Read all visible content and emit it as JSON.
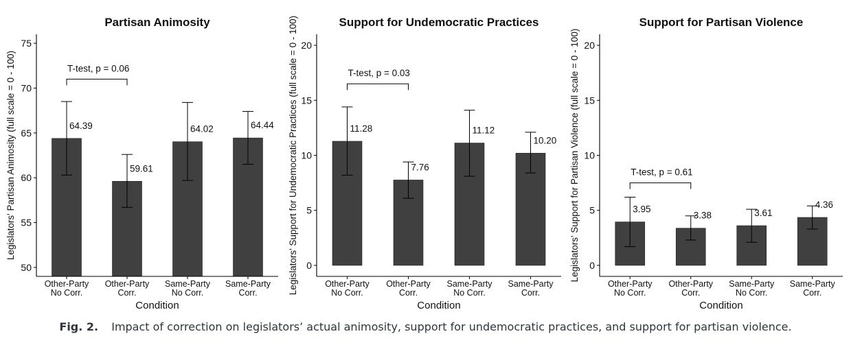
{
  "figure": {
    "label": "Fig. 2.",
    "caption": "Impact of correction on legislators’ actual animosity, support for undemocratic practices, and support for partisan violence."
  },
  "colors": {
    "bar": "#404040",
    "axis": "#000000"
  },
  "chart_data": [
    {
      "type": "bar",
      "title": "Partisan Animosity",
      "xlabel": "Condition",
      "ylabel": "Legislators' Partisan Animosity (full scale = 0 - 100)",
      "categories": [
        "Other-Party\nNo Corr.",
        "Other-Party\nCorr.",
        "Same-Party\nNo Corr.",
        "Same-Party\nCorr."
      ],
      "values": [
        64.39,
        59.61,
        64.02,
        64.44
      ],
      "value_labels": [
        "64.39",
        "59.61",
        "64.02",
        "64.44"
      ],
      "error_low": [
        60.3,
        56.7,
        59.7,
        61.5
      ],
      "error_high": [
        68.5,
        62.6,
        68.4,
        67.4
      ],
      "ylim": [
        49,
        76
      ],
      "bar_base": 49,
      "yticks": [
        50,
        55,
        60,
        65,
        70,
        75
      ],
      "annotation": {
        "text": "T-test, p = 0.06",
        "from": 0,
        "to": 1,
        "y": 71
      },
      "grid": false
    },
    {
      "type": "bar",
      "title": "Support for Undemocratic Practices",
      "xlabel": "Condition",
      "ylabel": "Legislators' Support for Undemocratic Practices (full scale = 0 - 100)",
      "categories": [
        "Other-Party\nNo Corr.",
        "Other-Party\nCorr.",
        "Same-Party\nNo Corr.",
        "Same-Party\nCorr."
      ],
      "values": [
        11.28,
        7.76,
        11.12,
        10.2
      ],
      "value_labels": [
        "11.28",
        "7.76",
        "11.12",
        "10.20"
      ],
      "error_low": [
        8.2,
        6.1,
        8.1,
        8.4
      ],
      "error_high": [
        14.4,
        9.4,
        14.1,
        12.1
      ],
      "ylim": [
        -1,
        21
      ],
      "bar_base": 0,
      "yticks": [
        0,
        5,
        10,
        15,
        20
      ],
      "annotation": {
        "text": "T-test, p = 0.03",
        "from": 0,
        "to": 1,
        "y": 16.5
      },
      "grid": false
    },
    {
      "type": "bar",
      "title": "Support for Partisan Violence",
      "xlabel": "Condition",
      "ylabel": "Legislators' Support for Partisan Violence (full scale = 0 - 100)",
      "categories": [
        "Other-Party\nNo Corr.",
        "Other-Party\nCorr.",
        "Same-Party\nNo Corr.",
        "Same-Party\nCorr."
      ],
      "values": [
        3.95,
        3.38,
        3.61,
        4.36
      ],
      "value_labels": [
        "3.95",
        "3.38",
        "3.61",
        "4.36"
      ],
      "error_low": [
        1.7,
        2.3,
        2.1,
        3.3
      ],
      "error_high": [
        6.2,
        4.5,
        5.1,
        5.4
      ],
      "ylim": [
        -1,
        21
      ],
      "bar_base": 0,
      "yticks": [
        0,
        5,
        10,
        15,
        20
      ],
      "annotation": {
        "text": "T-test, p = 0.61",
        "from": 0,
        "to": 1,
        "y": 7.5
      },
      "grid": false
    }
  ]
}
